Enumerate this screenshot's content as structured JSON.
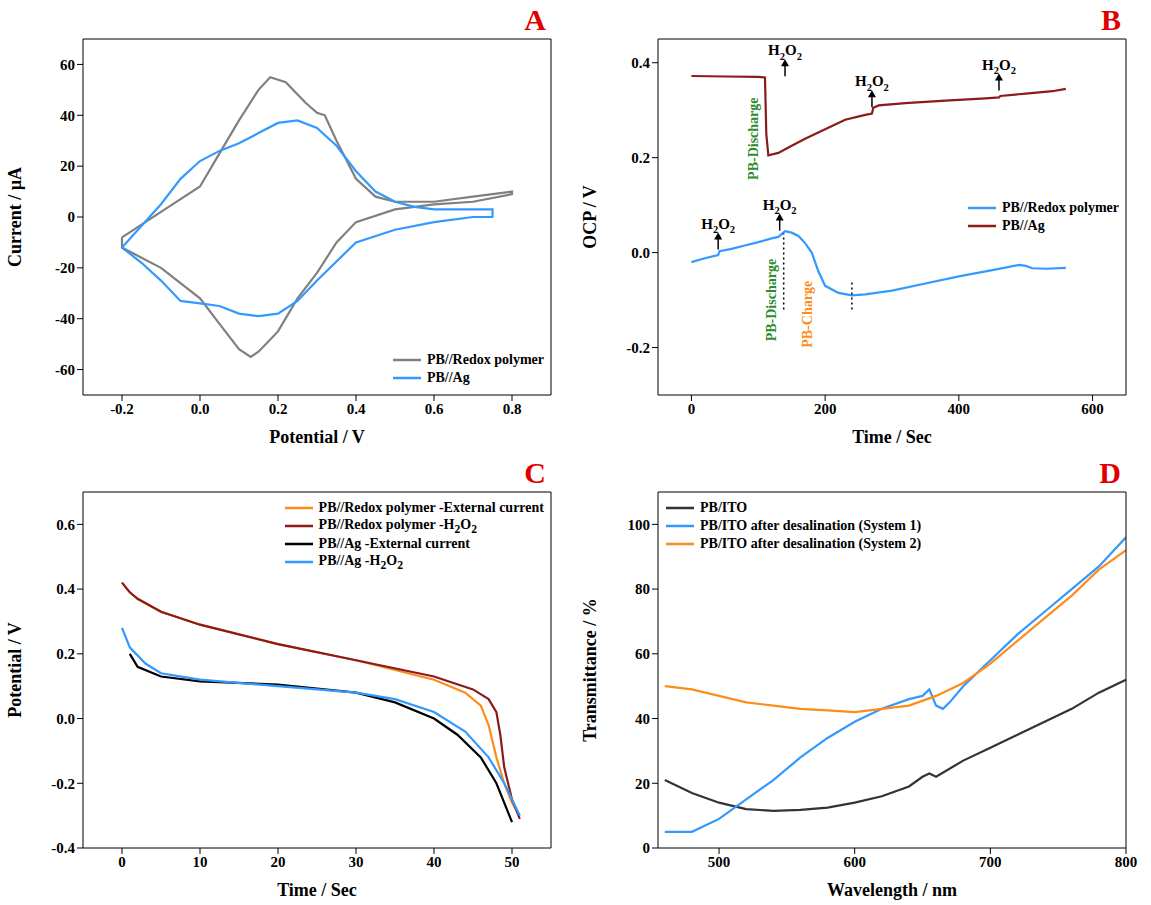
{
  "chart_data": [
    {
      "type": "line",
      "panel": "A",
      "x_label": "Potential / V",
      "y_label": "Current / µA",
      "xlim": [
        -0.3,
        0.9
      ],
      "xticks": [
        -0.2,
        {
          "value": 0,
          "label": "0.0"
        },
        0.2,
        0.4,
        0.6,
        0.8
      ],
      "ylim": [
        -70,
        70
      ],
      "yticks": [
        -60,
        -40,
        -20,
        0,
        20,
        40,
        60
      ],
      "grid": false,
      "legend": "lower right",
      "series": [
        {
          "name": "PB//Redox polymer",
          "color": "#808080",
          "x": [
            -0.2,
            -0.1,
            0,
            0.05,
            0.1,
            0.15,
            0.18,
            0.22,
            0.27,
            0.3,
            0.32,
            0.35,
            0.4,
            0.45,
            0.5,
            0.6,
            0.7,
            0.8,
            0.8,
            0.7,
            0.6,
            0.5,
            0.4,
            0.35,
            0.3,
            0.25,
            0.2,
            0.15,
            0.13,
            0.1,
            0.05,
            0,
            -0.05,
            -0.1,
            -0.15,
            -0.2,
            -0.2
          ],
          "values": [
            -8,
            2,
            12,
            25,
            38,
            50,
            55,
            53,
            45,
            41,
            40,
            30,
            15,
            8,
            6,
            6,
            8,
            10,
            9,
            6,
            5,
            3,
            -2,
            -10,
            -22,
            -32,
            -45,
            -53,
            -55,
            -52,
            -42,
            -32,
            -26,
            -20,
            -16,
            -12,
            -8
          ]
        },
        {
          "name": "PB//Ag",
          "color": "#3399ff",
          "x": [
            -0.2,
            -0.1,
            -0.05,
            0,
            0.05,
            0.1,
            0.15,
            0.2,
            0.25,
            0.3,
            0.35,
            0.4,
            0.45,
            0.5,
            0.55,
            0.6,
            0.7,
            0.75,
            0.75,
            0.7,
            0.6,
            0.5,
            0.4,
            0.3,
            0.25,
            0.2,
            0.15,
            0.1,
            0.05,
            0,
            -0.05,
            -0.1,
            -0.15,
            -0.2
          ],
          "values": [
            -12,
            5,
            15,
            22,
            26,
            29,
            33,
            37,
            38,
            35,
            28,
            18,
            10,
            6,
            4,
            3,
            3,
            3,
            0,
            0,
            -2,
            -5,
            -10,
            -25,
            -33,
            -38,
            -39,
            -38,
            -35,
            -34,
            -33,
            -25,
            -18,
            -12
          ]
        }
      ]
    },
    {
      "type": "line",
      "panel": "B",
      "x_label": "Time / Sec",
      "y_label": "OCP / V",
      "xlim": [
        -50,
        650
      ],
      "xticks": [
        0,
        200,
        400,
        600
      ],
      "ylim": [
        -0.3,
        0.45
      ],
      "yticks": [
        -0.2,
        {
          "value": 0,
          "label": "0.0"
        },
        0.2,
        0.4
      ],
      "grid": false,
      "legend": "center right",
      "series": [
        {
          "name": "PB//Redox polymer",
          "color": "#3399ff",
          "x": [
            0,
            20,
            40,
            42,
            60,
            80,
            100,
            120,
            130,
            140,
            150,
            160,
            170,
            180,
            190,
            200,
            220,
            240,
            260,
            300,
            350,
            400,
            450,
            490,
            500,
            510,
            530,
            560
          ],
          "values": [
            -0.02,
            -0.012,
            -0.005,
            0.003,
            0.008,
            0.015,
            0.022,
            0.03,
            0.033,
            0.045,
            0.042,
            0.035,
            0.02,
            0.0,
            -0.04,
            -0.07,
            -0.085,
            -0.09,
            -0.088,
            -0.08,
            -0.065,
            -0.05,
            -0.037,
            -0.026,
            -0.028,
            -0.033,
            -0.034,
            -0.032
          ]
        },
        {
          "name": "PB//Ag",
          "color": "#8b1a1a",
          "x": [
            0,
            50,
            100,
            110,
            112,
            115,
            130,
            150,
            170,
            200,
            230,
            260,
            270,
            272,
            280,
            320,
            380,
            440,
            460,
            462,
            500,
            540,
            560
          ],
          "values": [
            0.372,
            0.371,
            0.37,
            0.369,
            0.25,
            0.205,
            0.21,
            0.225,
            0.24,
            0.26,
            0.28,
            0.29,
            0.293,
            0.305,
            0.31,
            0.315,
            0.32,
            0.325,
            0.327,
            0.33,
            0.335,
            0.34,
            0.345
          ]
        }
      ],
      "annotations": [
        {
          "text": "H2O2",
          "x": 40,
          "y": 0.0
        },
        {
          "text": "H2O2",
          "x": 132,
          "y": 0.04
        },
        {
          "text": "H2O2",
          "x": 140,
          "y": 0.365
        },
        {
          "text": "H2O2",
          "x": 270,
          "y": 0.3
        },
        {
          "text": "H2O2",
          "x": 460,
          "y": 0.335
        }
      ],
      "phase_labels": [
        {
          "text": "PB-Discharge",
          "x": 95,
          "y": 0.24,
          "color": "#2e8b2e"
        },
        {
          "text": "PB-Discharge",
          "x": 122,
          "y": -0.1,
          "color": "#2e8b2e"
        },
        {
          "text": "PB-Charge",
          "x": 175,
          "y": -0.13,
          "color": "#ff8c1a"
        }
      ],
      "dotted_lines": [
        {
          "x": 138,
          "from": -0.12,
          "to": 0.04
        },
        {
          "x": 240,
          "from": -0.12,
          "to": -0.06
        }
      ]
    },
    {
      "type": "line",
      "panel": "C",
      "x_label": "Time / Sec",
      "y_label": "Potential / V",
      "xlim": [
        -5,
        55
      ],
      "xticks": [
        0,
        10,
        20,
        30,
        40,
        50
      ],
      "ylim": [
        -0.4,
        0.7
      ],
      "yticks": [
        -0.4,
        -0.2,
        {
          "value": 0,
          "label": "0.0"
        },
        0.2,
        0.4,
        0.6
      ],
      "grid": false,
      "legend": "upper right",
      "series": [
        {
          "name": "PB//Redox polymer -External current",
          "color": "#ff8c1a",
          "x": [
            0,
            1,
            2,
            5,
            10,
            20,
            30,
            40,
            44,
            46,
            47,
            48,
            49,
            50,
            51
          ],
          "values": [
            0.42,
            0.39,
            0.37,
            0.33,
            0.29,
            0.23,
            0.18,
            0.12,
            0.08,
            0.04,
            -0.02,
            -0.12,
            -0.2,
            -0.26,
            -0.3
          ]
        },
        {
          "name": "PB//Redox polymer -H2O2",
          "color": "#8b1a1a",
          "x": [
            0,
            1,
            2,
            5,
            10,
            20,
            30,
            40,
            45,
            47,
            48,
            48.5,
            49,
            50,
            51
          ],
          "values": [
            0.42,
            0.39,
            0.37,
            0.33,
            0.29,
            0.23,
            0.18,
            0.13,
            0.09,
            0.06,
            0.02,
            -0.05,
            -0.15,
            -0.25,
            -0.31
          ]
        },
        {
          "name": "PB//Ag -External current",
          "color": "#000000",
          "x": [
            1,
            2,
            5,
            10,
            20,
            30,
            35,
            40,
            43,
            46,
            48,
            50
          ],
          "values": [
            0.2,
            0.16,
            0.13,
            0.115,
            0.105,
            0.08,
            0.05,
            0.0,
            -0.05,
            -0.12,
            -0.2,
            -0.32
          ]
        },
        {
          "name": "PB//Ag -H2O2",
          "color": "#3399ff",
          "x": [
            0,
            1,
            3,
            5,
            10,
            20,
            30,
            35,
            40,
            44,
            47,
            49,
            51
          ],
          "values": [
            0.28,
            0.22,
            0.17,
            0.14,
            0.12,
            0.1,
            0.08,
            0.06,
            0.02,
            -0.04,
            -0.12,
            -0.2,
            -0.3
          ]
        }
      ]
    },
    {
      "type": "line",
      "panel": "D",
      "x_label": "Wavelength / nm",
      "y_label": "Transmittance / %",
      "xlim": [
        455,
        800
      ],
      "xticks": [
        500,
        600,
        700,
        800
      ],
      "ylim": [
        0,
        110
      ],
      "yticks": [
        0,
        20,
        40,
        60,
        80,
        100
      ],
      "grid": false,
      "legend": "upper left",
      "series": [
        {
          "name": "PB/ITO",
          "color": "#333333",
          "x": [
            460,
            480,
            500,
            520,
            540,
            560,
            580,
            600,
            620,
            640,
            650,
            655,
            660,
            680,
            700,
            720,
            740,
            760,
            780,
            800
          ],
          "values": [
            21,
            17,
            14,
            12,
            11.5,
            11.8,
            12.5,
            14,
            16,
            19,
            22,
            23,
            22,
            27,
            31,
            35,
            39,
            43,
            48,
            52
          ]
        },
        {
          "name": "PB/ITO after desalination (System 1)",
          "color": "#3399ff",
          "x": [
            460,
            480,
            500,
            520,
            540,
            560,
            580,
            600,
            620,
            640,
            650,
            655,
            660,
            665,
            670,
            680,
            700,
            720,
            740,
            760,
            780,
            800
          ],
          "values": [
            5,
            5,
            9,
            15,
            21,
            28,
            34,
            39,
            43,
            46,
            47,
            49,
            44,
            43,
            45,
            50,
            58,
            66,
            73,
            80,
            87,
            96
          ]
        },
        {
          "name": "PB/ITO after desalination (System 2)",
          "color": "#ff8c1a",
          "x": [
            460,
            480,
            500,
            520,
            540,
            560,
            580,
            600,
            620,
            640,
            660,
            680,
            700,
            720,
            740,
            760,
            780,
            800
          ],
          "values": [
            50,
            49,
            47,
            45,
            44,
            43,
            42.5,
            42,
            43,
            44,
            47,
            51,
            57,
            64,
            71,
            78,
            86,
            92
          ]
        }
      ]
    }
  ]
}
